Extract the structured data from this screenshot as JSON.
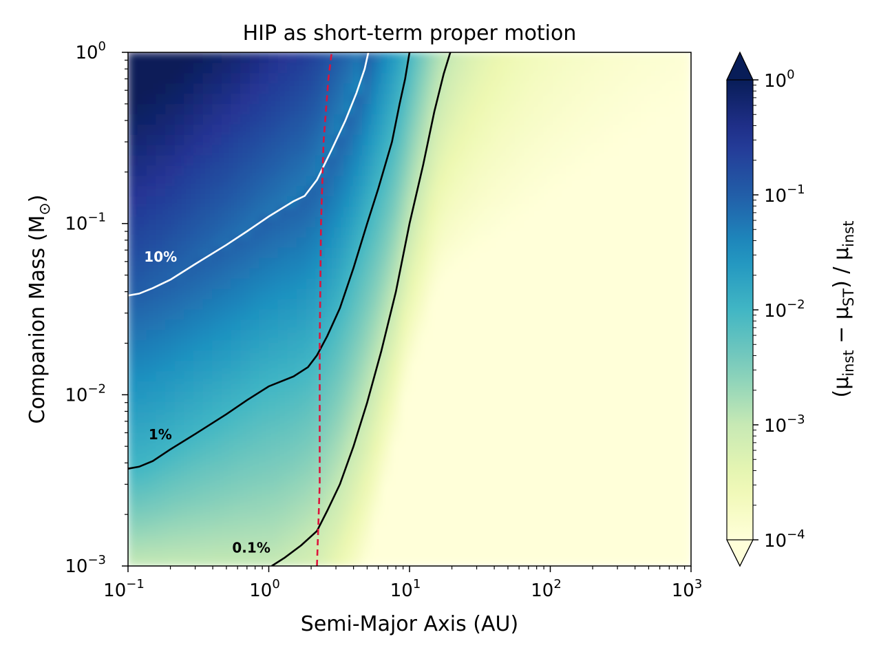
{
  "chart_data": {
    "type": "heatmap",
    "title": "HIP as short-term proper motion",
    "xlabel": "Semi-Major Axis (AU)",
    "ylabel": "Companion Mass (M",
    "ylabel_sub": "⊙",
    "ylabel_close": ")",
    "x_scale": "log",
    "y_scale": "log",
    "xlim": [
      0.1,
      1000
    ],
    "ylim": [
      0.001,
      1
    ],
    "x_ticks": [
      {
        "base": "10",
        "exp": "−1",
        "value": 0.1
      },
      {
        "base": "10",
        "exp": "0",
        "value": 1
      },
      {
        "base": "10",
        "exp": "1",
        "value": 10
      },
      {
        "base": "10",
        "exp": "2",
        "value": 100
      },
      {
        "base": "10",
        "exp": "3",
        "value": 1000
      }
    ],
    "y_ticks": [
      {
        "base": "10",
        "exp": "−3",
        "value": 0.001
      },
      {
        "base": "10",
        "exp": "−2",
        "value": 0.01
      },
      {
        "base": "10",
        "exp": "−1",
        "value": 0.1
      },
      {
        "base": "10",
        "exp": "0",
        "value": 1
      }
    ],
    "colorbar": {
      "scale": "log",
      "range": [
        0.0001,
        1
      ],
      "extend": "both",
      "colormap": "YlGnBu",
      "colors": [
        "#ffffd9",
        "#edf8b1",
        "#c7e9b4",
        "#7fcdbb",
        "#41b6c4",
        "#1d91c0",
        "#225ea8",
        "#253494",
        "#081d58"
      ],
      "ticks": [
        {
          "base": "10",
          "exp": "−4",
          "value": 0.0001
        },
        {
          "base": "10",
          "exp": "−3",
          "value": 0.001
        },
        {
          "base": "10",
          "exp": "−2",
          "value": 0.01
        },
        {
          "base": "10",
          "exp": "−1",
          "value": 0.1
        },
        {
          "base": "10",
          "exp": "0",
          "value": 1
        }
      ],
      "label_parts": [
        "(μ",
        "inst",
        " − μ",
        "ST",
        ") / μ",
        "inst"
      ]
    },
    "contours": [
      {
        "label": "10%",
        "level": 0.1,
        "color": "#ffffff",
        "label_at": [
          0.13,
          0.06
        ],
        "points": [
          [
            0.1,
            0.038
          ],
          [
            0.12,
            0.039
          ],
          [
            0.15,
            0.042
          ],
          [
            0.2,
            0.047
          ],
          [
            0.3,
            0.058
          ],
          [
            0.5,
            0.075
          ],
          [
            0.7,
            0.09
          ],
          [
            1.0,
            0.11
          ],
          [
            1.5,
            0.135
          ],
          [
            1.8,
            0.145
          ],
          [
            2.2,
            0.18
          ],
          [
            2.8,
            0.27
          ],
          [
            3.5,
            0.4
          ],
          [
            4.2,
            0.58
          ],
          [
            4.8,
            0.8
          ],
          [
            5.1,
            1.0
          ]
        ]
      },
      {
        "label": "1%",
        "level": 0.01,
        "color": "#000000",
        "label_at": [
          0.14,
          0.0055
        ],
        "points": [
          [
            0.1,
            0.0037
          ],
          [
            0.12,
            0.0038
          ],
          [
            0.15,
            0.0041
          ],
          [
            0.2,
            0.0048
          ],
          [
            0.3,
            0.0059
          ],
          [
            0.5,
            0.0077
          ],
          [
            0.7,
            0.0093
          ],
          [
            1.0,
            0.0112
          ],
          [
            1.5,
            0.0128
          ],
          [
            1.9,
            0.0145
          ],
          [
            2.2,
            0.017
          ],
          [
            2.6,
            0.022
          ],
          [
            3.2,
            0.032
          ],
          [
            4.0,
            0.055
          ],
          [
            5.0,
            0.1
          ],
          [
            6.0,
            0.16
          ],
          [
            7.5,
            0.3
          ],
          [
            8.5,
            0.5
          ],
          [
            9.3,
            0.7
          ],
          [
            10.0,
            1.0
          ]
        ]
      },
      {
        "label": "0.1%",
        "level": 0.001,
        "color": "#000000",
        "label_at": [
          0.55,
          0.0012
        ],
        "points": [
          [
            1.05,
            0.001
          ],
          [
            1.3,
            0.00112
          ],
          [
            1.7,
            0.00132
          ],
          [
            2.2,
            0.0016
          ],
          [
            2.6,
            0.0021
          ],
          [
            3.2,
            0.003
          ],
          [
            4.0,
            0.005
          ],
          [
            5.0,
            0.009
          ],
          [
            6.3,
            0.018
          ],
          [
            8.0,
            0.04
          ],
          [
            10.0,
            0.1
          ],
          [
            12.5,
            0.22
          ],
          [
            15.0,
            0.45
          ],
          [
            17.5,
            0.75
          ],
          [
            19.5,
            1.0
          ]
        ]
      }
    ],
    "reference_line": {
      "color": "#dc143c",
      "style": "dashed",
      "points": [
        [
          2.2,
          0.001
        ],
        [
          2.3,
          0.003
        ],
        [
          2.3,
          0.02
        ],
        [
          2.35,
          0.1
        ],
        [
          2.45,
          0.3
        ],
        [
          2.65,
          0.7
        ],
        [
          2.8,
          1.0
        ]
      ]
    },
    "grid": false
  }
}
